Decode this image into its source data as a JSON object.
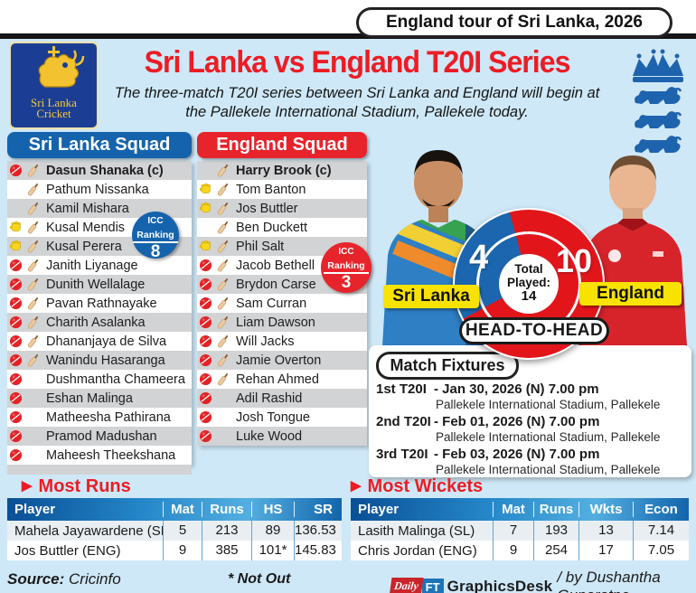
{
  "banner": {
    "label": "England tour of Sri Lanka, 2026"
  },
  "header": {
    "title": "Sri Lanka vs England T20I Series",
    "subtitle_line1": "The three-match T20I series between Sri Lanka and England will begin at",
    "subtitle_line2": "the Pallekele International Stadium, Pallekele today.",
    "slc_logo_line1": "Sri Lanka",
    "slc_logo_line2": "Cricket"
  },
  "squads": {
    "sri_lanka": {
      "title": "Sri Lanka Squad",
      "icc_badge": {
        "line1": "ICC",
        "line2": "Ranking",
        "value": "8"
      },
      "players": [
        {
          "name": "Dasun Shanaka (c)",
          "icons": [
            "ball",
            "bat"
          ],
          "captain": true
        },
        {
          "name": "Pathum Nissanka",
          "icons": [
            "bat"
          ]
        },
        {
          "name": "Kamil Mishara",
          "icons": [
            "bat"
          ]
        },
        {
          "name": "Kusal Mendis",
          "icons": [
            "glove",
            "bat"
          ]
        },
        {
          "name": "Kusal Perera",
          "icons": [
            "glove",
            "bat"
          ]
        },
        {
          "name": "Janith Liyanage",
          "icons": [
            "ball",
            "bat"
          ]
        },
        {
          "name": "Dunith Wellalage",
          "icons": [
            "ball",
            "bat"
          ]
        },
        {
          "name": "Pavan Rathnayake",
          "icons": [
            "ball",
            "bat"
          ]
        },
        {
          "name": "Charith Asalanka",
          "icons": [
            "ball",
            "bat"
          ]
        },
        {
          "name": "Dhananjaya de Silva",
          "icons": [
            "ball",
            "bat"
          ]
        },
        {
          "name": "Wanindu Hasaranga",
          "icons": [
            "ball",
            "bat"
          ]
        },
        {
          "name": "Dushmantha Chameera",
          "icons": [
            "ball"
          ]
        },
        {
          "name": "Eshan Malinga",
          "icons": [
            "ball"
          ]
        },
        {
          "name": "Matheesha Pathirana",
          "icons": [
            "ball"
          ]
        },
        {
          "name": "Pramod Madushan",
          "icons": [
            "ball"
          ]
        },
        {
          "name": "Maheesh Theekshana",
          "icons": [
            "ball"
          ]
        }
      ]
    },
    "england": {
      "title": "England Squad",
      "icc_badge": {
        "line1": "ICC",
        "line2": "Ranking",
        "value": "3"
      },
      "players": [
        {
          "name": "Harry Brook (c)",
          "icons": [
            "bat"
          ],
          "captain": true
        },
        {
          "name": "Tom Banton",
          "icons": [
            "glove",
            "bat"
          ]
        },
        {
          "name": "Jos Buttler",
          "icons": [
            "glove",
            "bat"
          ]
        },
        {
          "name": "Ben Duckett",
          "icons": [
            "bat"
          ]
        },
        {
          "name": "Phil Salt",
          "icons": [
            "glove",
            "bat"
          ]
        },
        {
          "name": "Jacob Bethell",
          "icons": [
            "ball",
            "bat"
          ]
        },
        {
          "name": "Brydon Carse",
          "icons": [
            "ball",
            "bat"
          ]
        },
        {
          "name": "Sam Curran",
          "icons": [
            "ball",
            "bat"
          ]
        },
        {
          "name": "Liam Dawson",
          "icons": [
            "ball",
            "bat"
          ]
        },
        {
          "name": "Will Jacks",
          "icons": [
            "ball",
            "bat"
          ]
        },
        {
          "name": "Jamie Overton",
          "icons": [
            "ball",
            "bat"
          ]
        },
        {
          "name": "Rehan Ahmed",
          "icons": [
            "ball",
            "bat"
          ]
        },
        {
          "name": "Adil Rashid",
          "icons": [
            "ball"
          ]
        },
        {
          "name": "Josh Tongue",
          "icons": [
            "ball"
          ]
        },
        {
          "name": "Luke Wood",
          "icons": [
            "ball"
          ]
        }
      ]
    }
  },
  "head_to_head": {
    "label": "HEAD-TO-HEAD",
    "team_left": {
      "name": "Sri Lanka",
      "wins": "4"
    },
    "team_right": {
      "name": "England",
      "wins": "10"
    },
    "center": {
      "line1": "Total",
      "line2": "Played:",
      "value": "14"
    }
  },
  "fixtures": {
    "title": "Match Fixtures",
    "items": [
      {
        "match": "1st T20I",
        "when": "- Jan 30, 2026 (N) 7.00 pm",
        "venue": "Pallekele International Stadium, Pallekele"
      },
      {
        "match": "2nd T20I",
        "when": "- Feb 01, 2026 (N) 7.00 pm",
        "venue": "Pallekele International Stadium, Pallekele"
      },
      {
        "match": "3rd T20I",
        "when": "- Feb 03, 2026 (N) 7.00 pm",
        "venue": "Pallekele International Stadium, Pallekele"
      }
    ]
  },
  "most_runs": {
    "title": "Most Runs",
    "columns": [
      "Player",
      "Mat",
      "Runs",
      "HS",
      "SR"
    ],
    "rows": [
      [
        "Mahela Jayawardene (SL)",
        "5",
        "213",
        "89",
        "136.53"
      ],
      [
        "Jos Buttler (ENG)",
        "9",
        "385",
        "101*",
        "145.83"
      ]
    ]
  },
  "most_wickets": {
    "title": "Most Wickets",
    "columns": [
      "Player",
      "Mat",
      "Runs",
      "Wkts",
      "Econ"
    ],
    "rows": [
      [
        "Lasith Malinga (SL)",
        "7",
        "193",
        "13",
        "7.14"
      ],
      [
        "Chris Jordan (ENG)",
        "9",
        "254",
        "17",
        "7.05"
      ]
    ]
  },
  "footer": {
    "source_label": "Source:",
    "source_value": "Cricinfo",
    "not_out": "* Not Out",
    "brand_daily": "Daily",
    "brand_ft": "FT",
    "brand_name": "GraphicsDesk",
    "credit": "/ by Dushantha Gunaratne"
  },
  "chart_data": {
    "type": "pie",
    "title": "HEAD-TO-HEAD",
    "labels": [
      "Sri Lanka",
      "England"
    ],
    "values": [
      4,
      10
    ],
    "total_label": "Total Played: 14",
    "colors": [
      "#1b66ae",
      "#e2151b"
    ],
    "legend_position": "side-labels"
  },
  "colors": {
    "accent_red": "#ed1c24",
    "sl_blue": "#1563ac",
    "eng_red": "#e7242b",
    "highlight_yellow": "#f8e300",
    "table_header_blue": "#1264ab",
    "bg_blue": "#cfe8f7"
  }
}
